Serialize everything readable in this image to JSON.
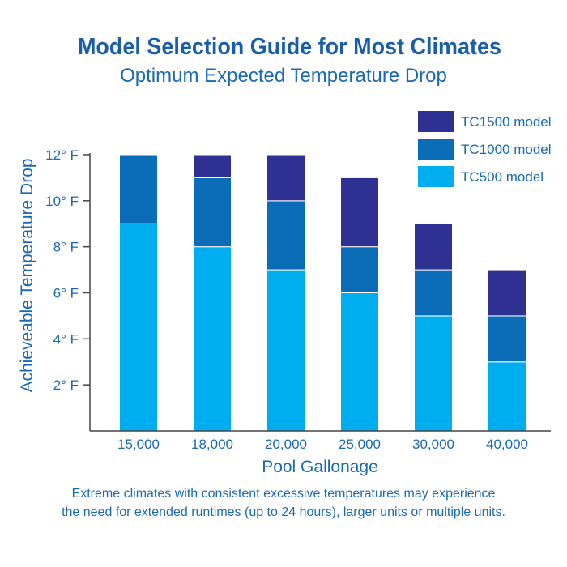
{
  "chart_data": {
    "type": "bar",
    "stacked": true,
    "title": "Model Selection Guide for Most Climates",
    "subtitle": "Optimum Expected Temperature Drop",
    "xlabel": "Pool Gallonage",
    "ylabel": "Achieveable Temperature Drop",
    "categories": [
      "15,000",
      "18,000",
      "20,000",
      "25,000",
      "30,000",
      "40,000"
    ],
    "series": [
      {
        "name": "TC500 model",
        "color": "#00aeef",
        "values": [
          9,
          8,
          7,
          6,
          5,
          3
        ]
      },
      {
        "name": "TC1000 model",
        "color": "#0b6db7",
        "values": [
          3,
          3,
          3,
          2,
          2,
          2
        ]
      },
      {
        "name": "TC1500 model",
        "color": "#2e3192",
        "values": [
          0,
          1,
          2,
          3,
          2,
          2
        ]
      }
    ],
    "ylim": [
      0,
      12
    ],
    "yticks": [
      2,
      4,
      6,
      8,
      10,
      12
    ],
    "ytick_labels": [
      "2° F",
      "4° F",
      "6° F",
      "8° F",
      "10° F",
      "12° F"
    ],
    "legend_position": "top-right",
    "legend_order": [
      "TC1500 model",
      "TC1000 model",
      "TC500 model"
    ],
    "grid": false
  },
  "footnote": {
    "line1": "Extreme climates with consistent excessive temperatures may experience",
    "line2": "the need for extended runtimes (up to 24 hours), larger units or multiple units."
  },
  "colors": {
    "title": "#1a5ea8",
    "text": "#1a6ab2",
    "axis": "#444444"
  }
}
